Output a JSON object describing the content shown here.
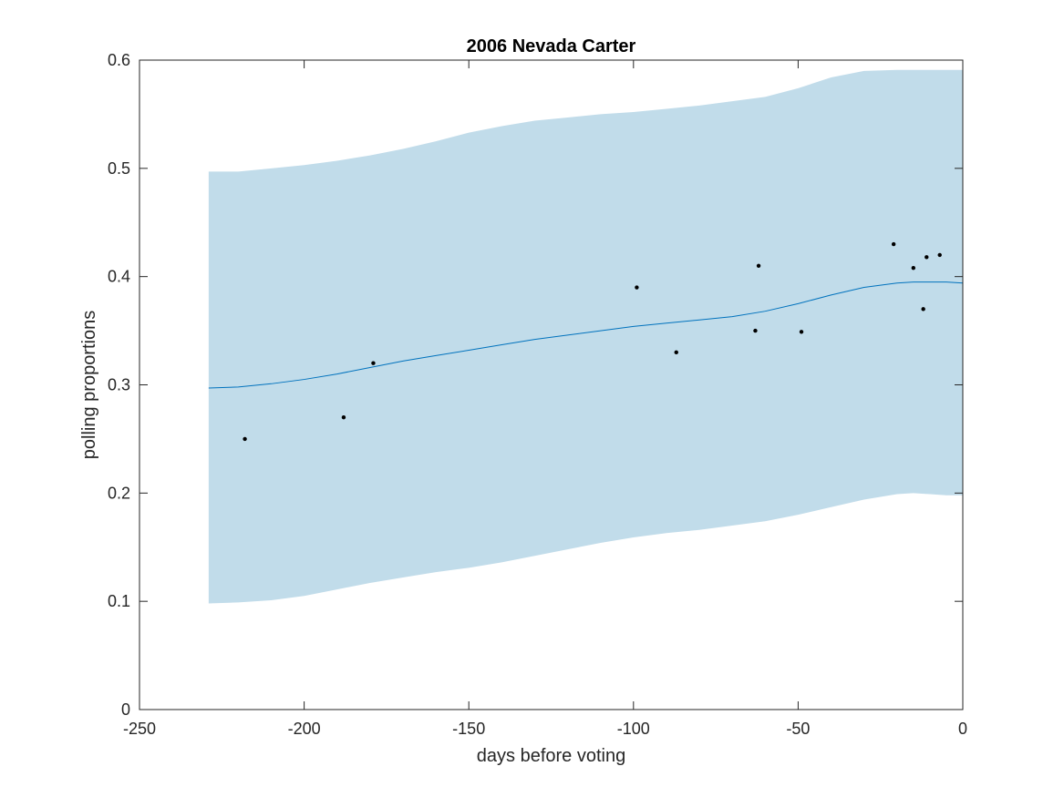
{
  "chart_data": {
    "type": "line",
    "title": "2006 Nevada Carter",
    "xlabel": "days before voting",
    "ylabel": "polling proportions",
    "xlim": [
      -250,
      0
    ],
    "ylim": [
      0,
      0.6
    ],
    "xticks": [
      -250,
      -200,
      -150,
      -100,
      -50,
      0
    ],
    "yticks": [
      0,
      0.1,
      0.2,
      0.3,
      0.4,
      0.5,
      0.6
    ],
    "xtick_labels": [
      "-250",
      "-200",
      "-150",
      "-100",
      "-50",
      "0"
    ],
    "ytick_labels": [
      "0",
      "0.1",
      "0.2",
      "0.3",
      "0.4",
      "0.5",
      "0.6"
    ],
    "grid": false,
    "band": {
      "x": [
        -229,
        -220,
        -210,
        -200,
        -190,
        -180,
        -170,
        -160,
        -150,
        -140,
        -130,
        -120,
        -110,
        -100,
        -90,
        -80,
        -70,
        -60,
        -50,
        -40,
        -30,
        -20,
        -15,
        -10,
        -5,
        0
      ],
      "upper": [
        0.497,
        0.497,
        0.5,
        0.503,
        0.507,
        0.512,
        0.518,
        0.525,
        0.533,
        0.539,
        0.544,
        0.547,
        0.55,
        0.552,
        0.555,
        0.558,
        0.562,
        0.566,
        0.574,
        0.584,
        0.59,
        0.591,
        0.591,
        0.591,
        0.591,
        0.591
      ],
      "lower": [
        0.098,
        0.099,
        0.101,
        0.105,
        0.111,
        0.117,
        0.122,
        0.127,
        0.131,
        0.136,
        0.142,
        0.148,
        0.154,
        0.159,
        0.163,
        0.166,
        0.17,
        0.174,
        0.18,
        0.187,
        0.194,
        0.199,
        0.2,
        0.199,
        0.198,
        0.198
      ]
    },
    "series": [
      {
        "type": "line",
        "x": [
          -229,
          -220,
          -210,
          -200,
          -190,
          -180,
          -170,
          -160,
          -150,
          -140,
          -130,
          -120,
          -110,
          -100,
          -90,
          -80,
          -70,
          -60,
          -50,
          -40,
          -30,
          -20,
          -15,
          -10,
          -5,
          0
        ],
        "y": [
          0.297,
          0.298,
          0.301,
          0.305,
          0.31,
          0.316,
          0.322,
          0.327,
          0.332,
          0.337,
          0.342,
          0.346,
          0.35,
          0.354,
          0.357,
          0.36,
          0.363,
          0.368,
          0.375,
          0.383,
          0.39,
          0.394,
          0.395,
          0.395,
          0.395,
          0.394
        ],
        "color": "#0072bd"
      },
      {
        "type": "scatter",
        "x": [
          -218,
          -188,
          -179,
          -99,
          -87,
          -63,
          -62,
          -49,
          -21,
          -15,
          -12,
          -11,
          -7
        ],
        "y": [
          0.25,
          0.27,
          0.32,
          0.39,
          0.33,
          0.35,
          0.41,
          0.349,
          0.43,
          0.408,
          0.37,
          0.418,
          0.42
        ],
        "color": "#000000"
      }
    ],
    "band_color": "#c1dcea",
    "line_color": "#0072bd",
    "point_color": "#000000",
    "axis_color": "#262626"
  }
}
